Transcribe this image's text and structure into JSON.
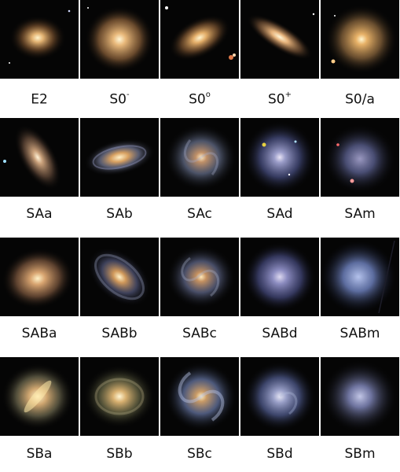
{
  "rows": [
    {
      "name": "elliptical-lenticular",
      "cells": [
        {
          "base": "E2",
          "sup": ""
        },
        {
          "base": "S0",
          "sup": "-"
        },
        {
          "base": "S0",
          "sup": "o"
        },
        {
          "base": "S0",
          "sup": "+"
        },
        {
          "base": "S0/a",
          "sup": ""
        }
      ]
    },
    {
      "name": "unbarred-spirals",
      "cells": [
        {
          "base": "SAa",
          "sup": ""
        },
        {
          "base": "SAb",
          "sup": ""
        },
        {
          "base": "SAc",
          "sup": ""
        },
        {
          "base": "SAd",
          "sup": ""
        },
        {
          "base": "SAm",
          "sup": ""
        }
      ]
    },
    {
      "name": "weakly-barred-spirals",
      "cells": [
        {
          "base": "SABa",
          "sup": ""
        },
        {
          "base": "SABb",
          "sup": ""
        },
        {
          "base": "SABc",
          "sup": ""
        },
        {
          "base": "SABd",
          "sup": ""
        },
        {
          "base": "SABm",
          "sup": ""
        }
      ]
    },
    {
      "name": "barred-spirals",
      "cells": [
        {
          "base": "SBa",
          "sup": ""
        },
        {
          "base": "SBb",
          "sup": ""
        },
        {
          "base": "SBc",
          "sup": ""
        },
        {
          "base": "SBd",
          "sup": ""
        },
        {
          "base": "SBm",
          "sup": ""
        }
      ]
    }
  ],
  "colors": {
    "background": "#ffffff",
    "sky": "#050505",
    "warm_core": "#fff3c8",
    "warm_halo": "#b98a55",
    "blue_disk": "#6f7fb0",
    "label": "#111111"
  }
}
